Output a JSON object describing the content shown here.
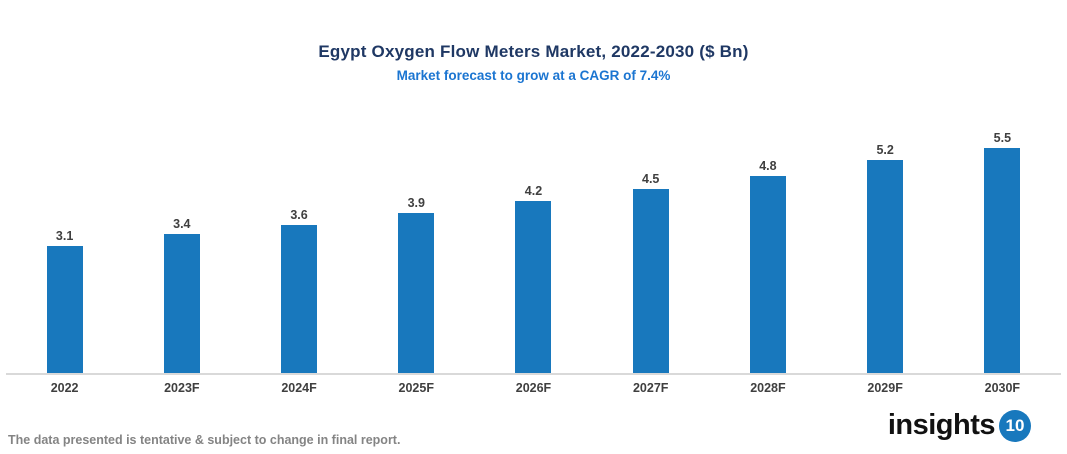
{
  "header": {
    "title": "Egypt Oxygen Flow Meters Market, 2022-2030 ($ Bn)",
    "subtitle": "Market forecast to grow at a CAGR of 7.4%"
  },
  "chart_data": {
    "type": "bar",
    "title": "Egypt Oxygen Flow Meters Market, 2022-2030 ($ Bn)",
    "subtitle": "Market forecast to grow at a CAGR of 7.4%",
    "categories": [
      "2022",
      "2023F",
      "2024F",
      "2025F",
      "2026F",
      "2027F",
      "2028F",
      "2029F",
      "2030F"
    ],
    "values": [
      3.1,
      3.4,
      3.6,
      3.9,
      4.2,
      4.5,
      4.8,
      5.2,
      5.5
    ],
    "xlabel": "",
    "ylabel": "",
    "ylim": [
      0,
      6
    ],
    "grid": false,
    "legend": "none",
    "value_labels_shown": true,
    "bar_color": "#1878bd"
  },
  "footer": {
    "disclaimer": "The data presented is tentative & subject to change in final report.",
    "logo_text": "insights",
    "logo_badge": "10"
  },
  "colors": {
    "title_text": "#1f3864",
    "subtitle_text": "#1b75d1",
    "bar": "#1878bd",
    "axis_line": "#d9d9d9",
    "label_text": "#3f3f3f",
    "disclaimer_text": "#848484",
    "logo_badge_bg": "#1878bd"
  }
}
